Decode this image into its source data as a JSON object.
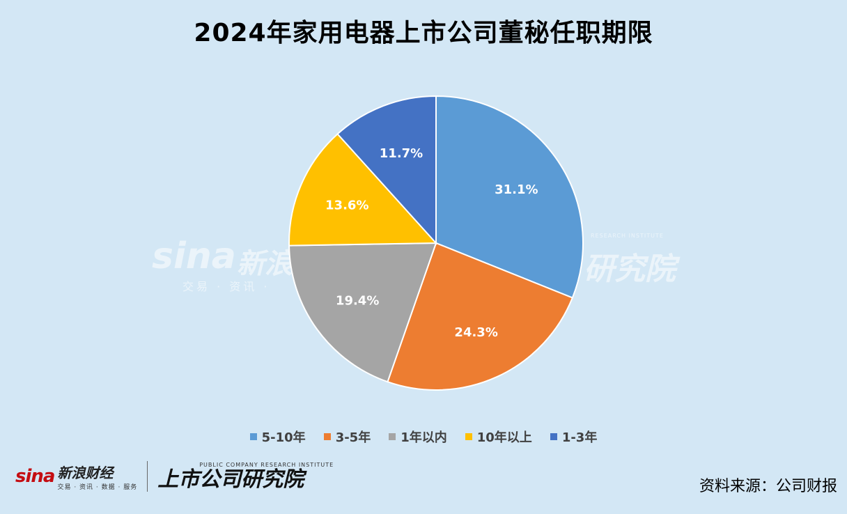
{
  "chart_data": {
    "type": "pie",
    "title": "2024年家用电器上市公司董秘任职期限",
    "categories": [
      "5-10年",
      "3-5年",
      "1年以内",
      "10年以上",
      "1-3年"
    ],
    "values": [
      31.1,
      24.3,
      19.4,
      13.6,
      11.7
    ],
    "data_labels": [
      "31.1%",
      "24.3%",
      "19.4%",
      "13.6%",
      "11.7%"
    ],
    "colors": [
      "#5b9bd5",
      "#ed7d31",
      "#a5a5a5",
      "#ffc000",
      "#4472c4"
    ],
    "legend_position": "bottom",
    "start_angle": "top-clockwise"
  },
  "footer": {
    "sina_logo": "sina",
    "brand_name": "新浪财经",
    "brand_tagline": "交易 · 资讯 · 数据 · 服务",
    "institute_en": "PUBLIC COMPANY RESEARCH INSTITUTE",
    "institute_name": "上市公司研究院",
    "source": "资料来源：公司财报"
  },
  "watermark": {
    "sina": "sina",
    "cn": "新浪",
    "tag": "交易 · 资讯 ·",
    "right": "研究院",
    "right_en": "RESEARCH INSTITUTE"
  }
}
